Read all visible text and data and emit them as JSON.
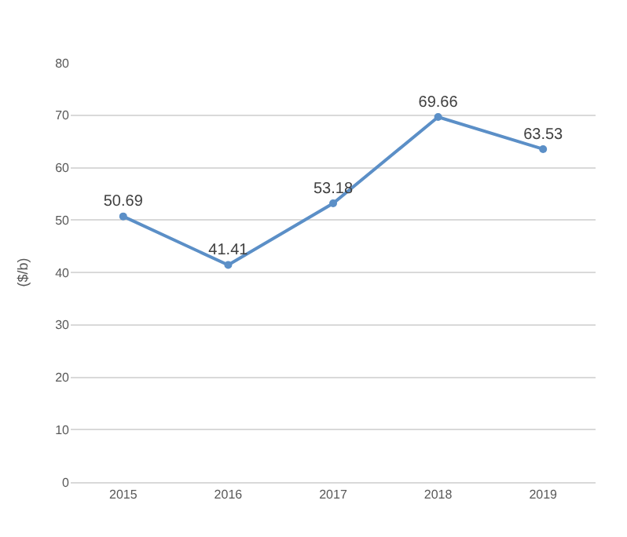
{
  "chart_data": {
    "type": "line",
    "ylabel": "($/b)",
    "categories": [
      "2015",
      "2016",
      "2017",
      "2018",
      "2019"
    ],
    "series": [
      {
        "color": "#5b8fc7",
        "values": [
          50.69,
          41.41,
          53.18,
          69.66,
          63.53
        ]
      }
    ],
    "ylim": [
      0,
      80
    ],
    "yticks": [
      0,
      10,
      20,
      30,
      40,
      50,
      60,
      70,
      80
    ],
    "grid": "y",
    "data_labels": true,
    "marker": "circle",
    "line_style": "solid",
    "legend": false
  }
}
